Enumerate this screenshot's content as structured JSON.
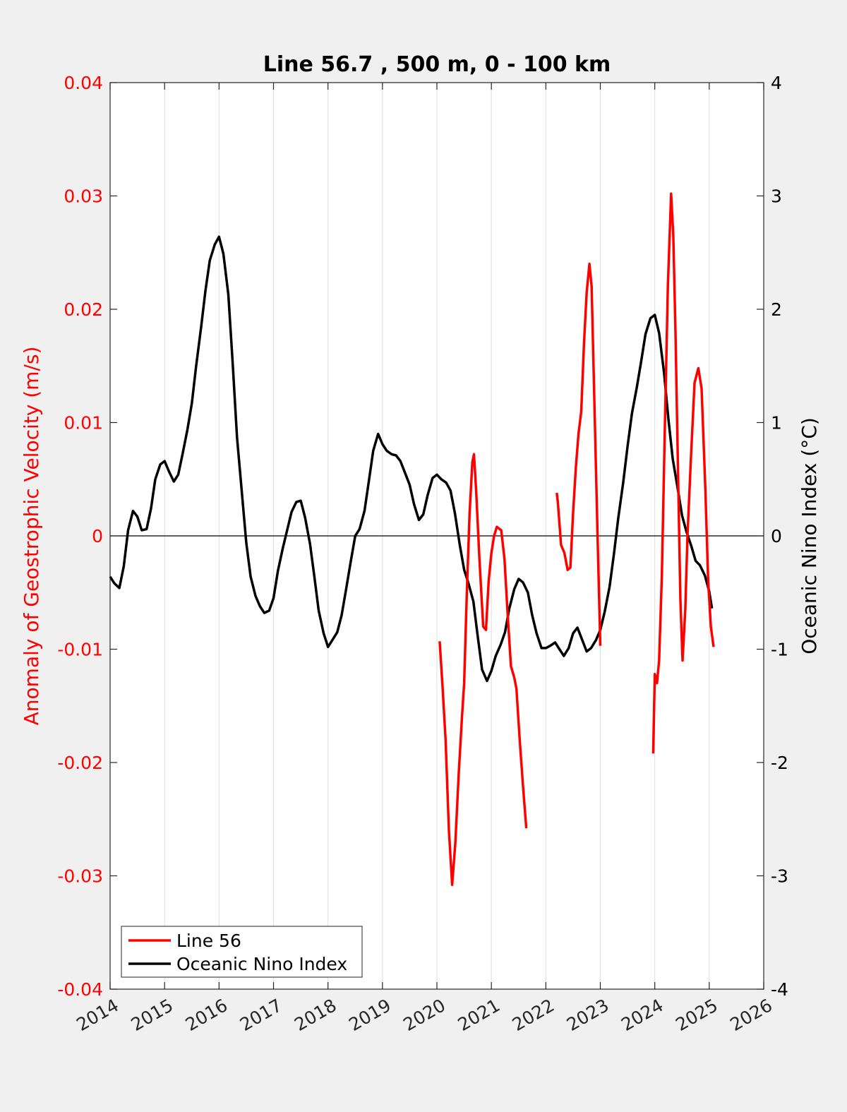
{
  "chart_data": {
    "type": "line",
    "title": "Line 56.7 , 500 m, 0 - 100 km",
    "xlabel": "",
    "ylabel": "Anomaly of Geostrophic Velocity (m/s)",
    "y2label": "Oceanic Nino Index (°C)",
    "xlim": [
      2014,
      2026
    ],
    "ylim": [
      -0.04,
      0.04
    ],
    "y2lim": [
      -4,
      4
    ],
    "x_ticks": [
      "2014",
      "2015",
      "2016",
      "2017",
      "2018",
      "2019",
      "2020",
      "2021",
      "2022",
      "2023",
      "2024",
      "2025",
      "2026"
    ],
    "y_ticks": [
      "-0.04",
      "-0.03",
      "-0.02",
      "-0.01",
      "0",
      "0.01",
      "0.02",
      "0.03",
      "0.04"
    ],
    "y2_ticks": [
      "-4",
      "-3",
      "-2",
      "-1",
      "0",
      "1",
      "2",
      "3",
      "4"
    ],
    "grid": "vertical",
    "legend_position": "bottom-left",
    "colors": {
      "left_axis": "#ff0000",
      "line56": "#ff0000",
      "oni": "#000000",
      "zero_line": "#000000"
    },
    "series": [
      {
        "name": "Line 56",
        "axis": "left",
        "segments": [
          [
            [
              2020.05,
              -0.0093
            ],
            [
              2020.1,
              -0.013
            ],
            [
              2020.16,
              -0.018
            ],
            [
              2020.22,
              -0.026
            ],
            [
              2020.28,
              -0.0308
            ],
            [
              2020.34,
              -0.027
            ],
            [
              2020.4,
              -0.021
            ],
            [
              2020.46,
              -0.016
            ],
            [
              2020.5,
              -0.013
            ],
            [
              2020.55,
              -0.005
            ],
            [
              2020.6,
              0.002
            ],
            [
              2020.65,
              0.0065
            ],
            [
              2020.68,
              0.0072
            ],
            [
              2020.72,
              0.004
            ],
            [
              2020.78,
              -0.002
            ],
            [
              2020.85,
              -0.008
            ],
            [
              2020.9,
              -0.0083
            ],
            [
              2020.95,
              -0.004
            ],
            [
              2021.0,
              -0.0015
            ],
            [
              2021.05,
              0.0
            ],
            [
              2021.1,
              0.0008
            ],
            [
              2021.18,
              0.0005
            ],
            [
              2021.24,
              -0.002
            ],
            [
              2021.3,
              -0.007
            ],
            [
              2021.36,
              -0.0115
            ],
            [
              2021.42,
              -0.0125
            ],
            [
              2021.46,
              -0.0135
            ],
            [
              2021.52,
              -0.018
            ],
            [
              2021.58,
              -0.022
            ],
            [
              2021.64,
              -0.0258
            ]
          ],
          [
            [
              2022.2,
              0.0038
            ],
            [
              2022.22,
              0.003
            ],
            [
              2022.28,
              -0.0008
            ],
            [
              2022.34,
              -0.0015
            ],
            [
              2022.4,
              -0.003
            ],
            [
              2022.45,
              -0.0028
            ],
            [
              2022.5,
              0.002
            ],
            [
              2022.55,
              0.006
            ],
            [
              2022.6,
              0.009
            ],
            [
              2022.65,
              0.011
            ],
            [
              2022.7,
              0.017
            ],
            [
              2022.75,
              0.0215
            ],
            [
              2022.8,
              0.024
            ],
            [
              2022.84,
              0.022
            ],
            [
              2022.9,
              0.01
            ],
            [
              2022.95,
              0.0
            ],
            [
              2023.0,
              -0.0097
            ]
          ],
          [
            [
              2023.97,
              -0.0192
            ],
            [
              2024.0,
              -0.0122
            ],
            [
              2024.04,
              -0.013
            ],
            [
              2024.08,
              -0.011
            ],
            [
              2024.13,
              -0.0035
            ],
            [
              2024.18,
              0.0085
            ],
            [
              2024.24,
              0.022
            ],
            [
              2024.3,
              0.0302
            ],
            [
              2024.34,
              0.0265
            ],
            [
              2024.38,
              0.018
            ],
            [
              2024.43,
              0.005
            ],
            [
              2024.47,
              -0.0055
            ],
            [
              2024.51,
              -0.011
            ],
            [
              2024.56,
              -0.0065
            ],
            [
              2024.6,
              0.0
            ],
            [
              2024.66,
              0.0065
            ],
            [
              2024.73,
              0.0135
            ],
            [
              2024.8,
              0.0148
            ],
            [
              2024.86,
              0.013
            ],
            [
              2024.93,
              0.004
            ],
            [
              2024.98,
              -0.004
            ],
            [
              2025.03,
              -0.008
            ],
            [
              2025.08,
              -0.0098
            ]
          ]
        ]
      },
      {
        "name": "Oceanic Nino Index",
        "axis": "right",
        "x": [
          2014.0,
          2014.08,
          2014.17,
          2014.25,
          2014.33,
          2014.42,
          2014.5,
          2014.58,
          2014.67,
          2014.75,
          2014.83,
          2014.92,
          2015.0,
          2015.08,
          2015.17,
          2015.25,
          2015.33,
          2015.42,
          2015.5,
          2015.58,
          2015.67,
          2015.75,
          2015.83,
          2015.92,
          2016.0,
          2016.08,
          2016.17,
          2016.25,
          2016.33,
          2016.42,
          2016.5,
          2016.58,
          2016.67,
          2016.75,
          2016.83,
          2016.92,
          2017.0,
          2017.08,
          2017.17,
          2017.25,
          2017.33,
          2017.42,
          2017.5,
          2017.58,
          2017.67,
          2017.75,
          2017.83,
          2017.92,
          2018.0,
          2018.08,
          2018.17,
          2018.25,
          2018.33,
          2018.42,
          2018.5,
          2018.58,
          2018.67,
          2018.75,
          2018.83,
          2018.92,
          2019.0,
          2019.08,
          2019.17,
          2019.25,
          2019.33,
          2019.42,
          2019.5,
          2019.58,
          2019.67,
          2019.75,
          2019.83,
          2019.92,
          2020.0,
          2020.08,
          2020.17,
          2020.25,
          2020.33,
          2020.42,
          2020.5,
          2020.58,
          2020.67,
          2020.75,
          2020.83,
          2020.92,
          2021.0,
          2021.08,
          2021.17,
          2021.25,
          2021.33,
          2021.42,
          2021.5,
          2021.58,
          2021.67,
          2021.75,
          2021.83,
          2021.92,
          2022.0,
          2022.08,
          2022.17,
          2022.25,
          2022.33,
          2022.42,
          2022.5,
          2022.58,
          2022.67,
          2022.75,
          2022.83,
          2022.92,
          2023.0,
          2023.08,
          2023.17,
          2023.25,
          2023.33,
          2023.42,
          2023.5,
          2023.58,
          2023.67,
          2023.75,
          2023.83,
          2023.92,
          2024.0,
          2024.08,
          2024.17,
          2024.25,
          2024.33,
          2024.42,
          2024.5,
          2024.58,
          2024.67,
          2024.75,
          2024.83,
          2024.92,
          2025.0,
          2025.05
        ],
        "values": [
          -0.36,
          -0.42,
          -0.46,
          -0.27,
          0.05,
          0.22,
          0.17,
          0.05,
          0.06,
          0.24,
          0.5,
          0.63,
          0.66,
          0.57,
          0.48,
          0.54,
          0.72,
          0.94,
          1.17,
          1.5,
          1.84,
          2.16,
          2.43,
          2.57,
          2.64,
          2.49,
          2.13,
          1.53,
          0.87,
          0.38,
          -0.06,
          -0.36,
          -0.53,
          -0.62,
          -0.68,
          -0.66,
          -0.55,
          -0.31,
          -0.11,
          0.05,
          0.21,
          0.3,
          0.31,
          0.16,
          -0.07,
          -0.36,
          -0.66,
          -0.86,
          -0.98,
          -0.92,
          -0.85,
          -0.7,
          -0.48,
          -0.22,
          0.0,
          0.06,
          0.22,
          0.48,
          0.75,
          0.9,
          0.81,
          0.75,
          0.72,
          0.71,
          0.66,
          0.55,
          0.45,
          0.28,
          0.14,
          0.19,
          0.36,
          0.51,
          0.54,
          0.5,
          0.47,
          0.4,
          0.2,
          -0.08,
          -0.3,
          -0.42,
          -0.58,
          -0.89,
          -1.18,
          -1.28,
          -1.19,
          -1.06,
          -0.96,
          -0.85,
          -0.64,
          -0.47,
          -0.38,
          -0.41,
          -0.5,
          -0.7,
          -0.86,
          -0.99,
          -0.99,
          -0.97,
          -0.94,
          -1.0,
          -1.06,
          -0.99,
          -0.86,
          -0.81,
          -0.92,
          -1.02,
          -0.99,
          -0.92,
          -0.83,
          -0.67,
          -0.45,
          -0.16,
          0.16,
          0.47,
          0.79,
          1.08,
          1.31,
          1.54,
          1.78,
          1.92,
          1.95,
          1.79,
          1.44,
          1.03,
          0.68,
          0.42,
          0.18,
          0.04,
          -0.09,
          -0.22,
          -0.26,
          -0.35,
          -0.49,
          -0.64
        ]
      }
    ]
  }
}
